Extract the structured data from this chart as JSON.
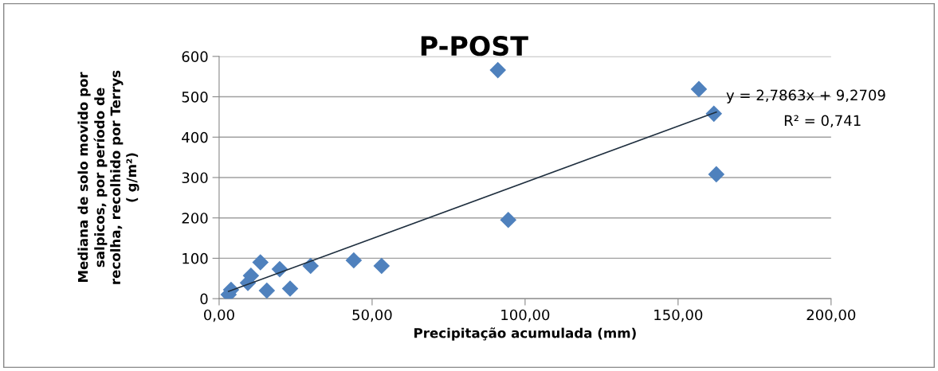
{
  "chart_data": {
    "type": "scatter",
    "title": "P-POST",
    "xlabel": "Precipitação acumulada (mm)",
    "ylabel": "Mediana de solo movido por\nsalpicos, por período de\nrecolha, recolhido por Terrys\n( g/m²)",
    "series": [
      {
        "color": "#4f81bd",
        "marker": "diamond",
        "x": [
          3.1,
          3.9,
          9.4,
          10.4,
          13.5,
          15.6,
          19.8,
          23.2,
          29.9,
          44.0,
          53.1,
          91.1,
          94.5,
          156.8,
          161.7,
          162.5
        ],
        "values": [
          10,
          22,
          39,
          57,
          90,
          20,
          73,
          25,
          81,
          95,
          81,
          566,
          195,
          519,
          458,
          308
        ]
      },
      {
        "type": "line",
        "color": "#1f2f3f",
        "x": [
          3.1,
          162.5
        ],
        "values": [
          18,
          462
        ]
      }
    ],
    "annotations": [
      "y = 2,7863x + 9,2709",
      "R² = 0,741"
    ],
    "xlim": [
      0,
      200
    ],
    "xticks": [
      {
        "value": 0,
        "label": "0,00"
      },
      {
        "value": 50,
        "label": "50,00"
      },
      {
        "value": 100,
        "label": "100,00"
      },
      {
        "value": 150,
        "label": "150,00"
      },
      {
        "value": 200,
        "label": "200,00"
      }
    ],
    "ylim": [
      0,
      600
    ],
    "yticks": [
      0,
      100,
      200,
      300,
      400,
      500,
      600
    ],
    "grid": "y"
  }
}
